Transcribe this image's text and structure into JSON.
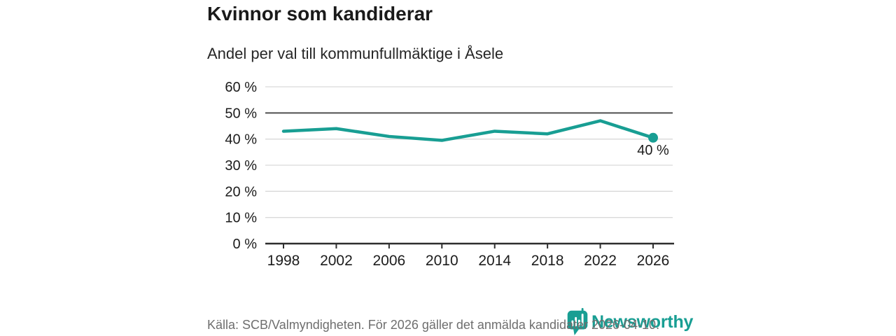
{
  "header": {
    "title": "Kvinnor som kandiderar",
    "subtitle": "Andel per val till kommunfullmäktige i Åsele"
  },
  "chart_data": {
    "type": "line",
    "title": "Kvinnor som kandiderar",
    "subtitle": "Andel per val till kommunfullmäktige i Åsele",
    "categories": [
      "1998",
      "2002",
      "2006",
      "2010",
      "2014",
      "2018",
      "2022",
      "2026"
    ],
    "values": [
      43,
      44,
      41,
      39.5,
      43,
      42,
      47,
      40.5
    ],
    "xlabel": "",
    "ylabel": "",
    "ylim": [
      0,
      60
    ],
    "yticks": [
      0,
      10,
      20,
      30,
      40,
      50,
      60
    ],
    "ytick_labels": [
      "0 %",
      "10 %",
      "20 %",
      "30 %",
      "40 %",
      "50 %",
      "60 %"
    ],
    "reference_line": 50,
    "grid": true,
    "legend": "none",
    "last_point_label": "40 %",
    "line_color": "#189e93"
  },
  "footer": {
    "source": "Källa: SCB/Valmyndigheten. För 2026 gäller det anmälda kandidater 2026-04-10."
  },
  "logo": {
    "wordmark": "Newsworthy",
    "icon": "bar-chart-bubble-icon",
    "color": "#189e93"
  },
  "colors": {
    "accent_teal": "#189e93",
    "gridline": "#d9d9d9",
    "reference_gridline": "#4f4f4f",
    "axis": "#2e2e2e",
    "text_dark": "#1c1c1c",
    "text_muted": "#6e6e6e"
  }
}
